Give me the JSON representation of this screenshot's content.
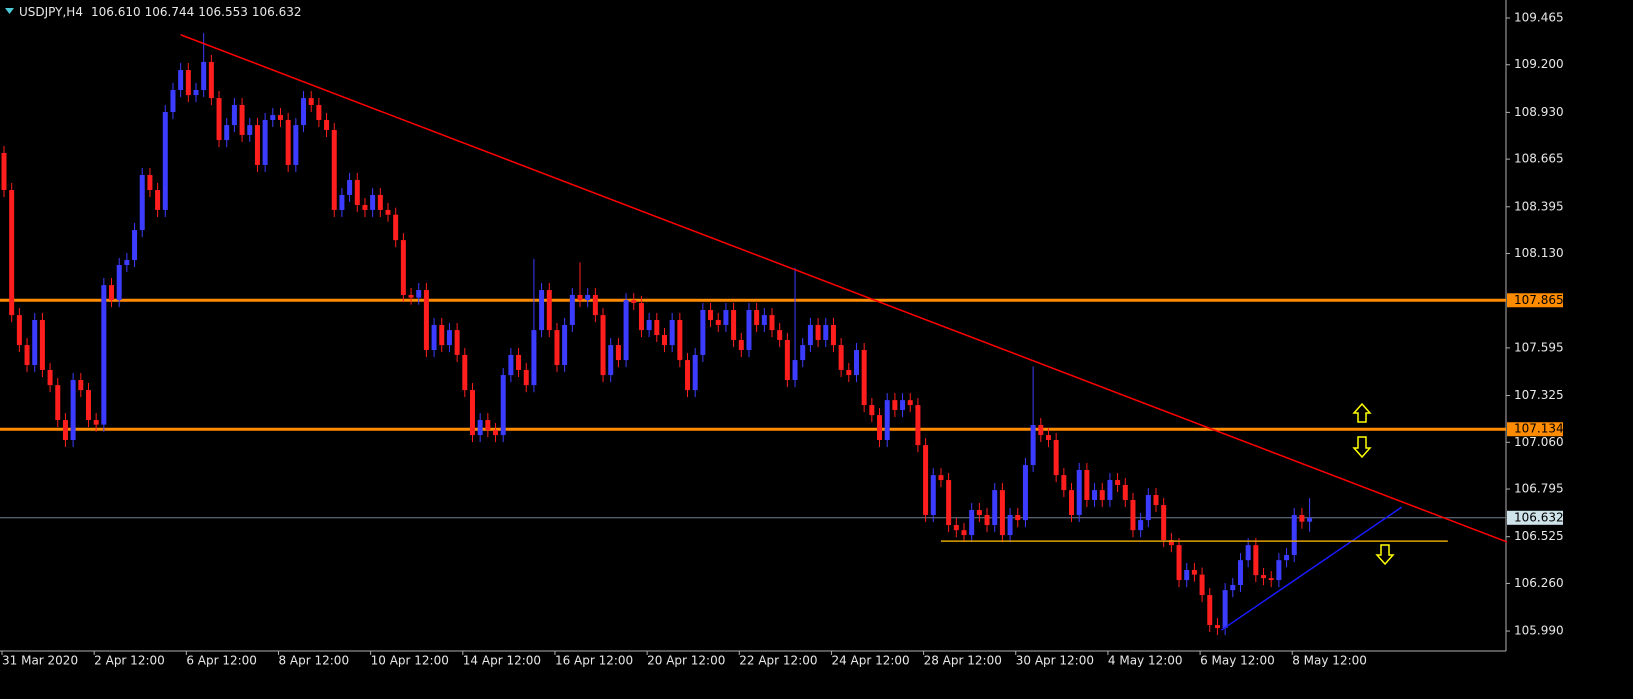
{
  "chart_data": {
    "type": "candlestick",
    "title": "USDJPY,H4",
    "ohlc_labels": [
      "106.610",
      "106.744",
      "106.553",
      "106.632"
    ],
    "categories": [
      "31 Mar 2020",
      null,
      null,
      null,
      null,
      null,
      null,
      null,
      null,
      null,
      null,
      null,
      "2 Apr 12:00",
      null,
      null,
      null,
      null,
      null,
      null,
      null,
      null,
      null,
      null,
      null,
      "6 Apr 12:00",
      null,
      null,
      null,
      null,
      null,
      null,
      null,
      null,
      null,
      null,
      null,
      "8 Apr 12:00",
      null,
      null,
      null,
      null,
      null,
      null,
      null,
      null,
      null,
      null,
      null,
      "10 Apr 12:00",
      null,
      null,
      null,
      null,
      null,
      null,
      null,
      null,
      null,
      null,
      null,
      "14 Apr 12:00",
      null,
      null,
      null,
      null,
      null,
      null,
      null,
      null,
      null,
      null,
      null,
      "16 Apr 12:00",
      null,
      null,
      null,
      null,
      null,
      null,
      null,
      null,
      null,
      null,
      null,
      "20 Apr 12:00",
      null,
      null,
      null,
      null,
      null,
      null,
      null,
      null,
      null,
      null,
      null,
      "22 Apr 12:00",
      null,
      null,
      null,
      null,
      null,
      null,
      null,
      null,
      null,
      null,
      null,
      "24 Apr 12:00",
      null,
      null,
      null,
      null,
      null,
      null,
      null,
      null,
      null,
      null,
      null,
      "28 Apr 12:00",
      null,
      null,
      null,
      null,
      null,
      null,
      null,
      null,
      null,
      null,
      null,
      "30 Apr 12:00",
      null,
      null,
      null,
      null,
      null,
      null,
      null,
      null,
      null,
      null,
      null,
      "4 May 12:00",
      null,
      null,
      null,
      null,
      null,
      null,
      null,
      null,
      null,
      null,
      null,
      "6 May 12:00",
      null,
      null,
      null,
      null,
      null,
      null,
      null,
      null,
      null,
      null,
      null,
      "8 May 12:00",
      null,
      null
    ],
    "open": [
      108.7,
      108.49,
      107.781,
      107.611,
      107.498,
      107.753,
      107.47,
      107.384,
      107.186,
      107.073,
      107.413,
      107.356,
      107.186,
      107.16,
      107.951,
      107.866,
      108.065,
      108.093,
      108.263,
      108.575,
      108.49,
      108.377,
      108.932,
      109.057,
      109.17,
      109.028,
      109.057,
      109.216,
      109.011,
      108.773,
      108.858,
      108.972,
      108.802,
      108.858,
      108.632,
      108.887,
      108.915,
      108.887,
      108.632,
      108.858,
      109.011,
      108.972,
      108.887,
      108.83,
      108.377,
      108.462,
      108.547,
      108.405,
      108.377,
      108.462,
      108.377,
      108.35,
      108.206,
      107.895,
      107.88,
      107.923,
      107.583,
      107.725,
      107.611,
      107.696,
      107.555,
      107.356,
      107.101,
      107.186,
      107.129,
      107.101,
      107.441,
      107.555,
      107.47,
      107.384,
      107.696,
      107.923,
      107.696,
      107.498,
      107.725,
      107.895,
      107.866,
      107.895,
      107.781,
      107.441,
      107.611,
      107.526,
      107.866,
      107.85,
      107.696,
      107.753,
      107.668,
      107.611,
      107.753,
      107.526,
      107.356,
      107.555,
      107.81,
      107.753,
      107.725,
      107.81,
      107.64,
      107.583,
      107.81,
      107.725,
      107.781,
      107.696,
      107.64,
      107.413,
      107.526,
      107.611,
      107.725,
      107.64,
      107.725,
      107.611,
      107.47,
      107.441,
      107.583,
      107.271,
      107.214,
      107.073,
      107.299,
      107.243,
      107.299,
      107.271,
      107.044,
      106.648,
      106.874,
      106.846,
      106.591,
      106.562,
      106.534,
      106.676,
      106.648,
      106.591,
      106.789,
      106.534,
      106.648,
      106.619,
      106.931,
      107.158,
      107.101,
      107.073,
      106.874,
      106.789,
      106.648,
      106.903,
      106.733,
      106.789,
      106.733,
      106.846,
      106.818,
      106.733,
      106.562,
      106.619,
      106.761,
      106.704,
      106.506,
      106.477,
      106.279,
      106.336,
      106.31,
      106.194,
      106.024,
      106.007,
      106.222,
      106.251,
      106.392,
      106.477,
      106.307,
      106.29,
      106.279,
      106.392,
      106.421,
      106.648,
      106.61
    ],
    "high": [
      108.74,
      108.53,
      107.821,
      107.651,
      107.793,
      107.793,
      107.51,
      107.424,
      107.226,
      107.453,
      107.453,
      107.396,
      107.226,
      107.991,
      107.991,
      108.105,
      108.133,
      108.303,
      108.615,
      108.615,
      108.53,
      108.972,
      109.097,
      109.21,
      109.21,
      109.097,
      109.38,
      109.256,
      109.051,
      108.898,
      109.012,
      109.012,
      108.898,
      108.898,
      108.927,
      108.955,
      108.955,
      108.927,
      108.898,
      109.051,
      109.051,
      109.012,
      108.927,
      108.87,
      108.502,
      108.587,
      108.587,
      108.445,
      108.502,
      108.502,
      108.417,
      108.39,
      108.246,
      107.935,
      107.963,
      107.963,
      107.765,
      107.765,
      107.736,
      107.736,
      107.595,
      107.396,
      107.226,
      107.226,
      107.169,
      107.481,
      107.595,
      107.595,
      107.51,
      108.1,
      107.963,
      107.963,
      107.736,
      107.765,
      107.935,
      108.08,
      107.935,
      107.935,
      107.821,
      107.651,
      107.651,
      107.906,
      107.906,
      107.89,
      107.793,
      107.793,
      107.708,
      107.793,
      107.793,
      107.566,
      107.595,
      107.85,
      107.85,
      107.793,
      107.85,
      107.85,
      107.68,
      107.85,
      107.85,
      107.821,
      107.821,
      107.736,
      107.68,
      108.05,
      107.651,
      107.765,
      107.765,
      107.765,
      107.765,
      107.651,
      107.51,
      107.623,
      107.623,
      107.311,
      107.254,
      107.339,
      107.339,
      107.339,
      107.339,
      107.311,
      107.084,
      106.914,
      106.914,
      106.886,
      106.631,
      106.602,
      106.716,
      106.716,
      106.688,
      106.829,
      106.829,
      106.688,
      106.688,
      106.971,
      107.49,
      107.198,
      107.141,
      107.113,
      106.914,
      106.829,
      106.943,
      106.943,
      106.829,
      106.829,
      106.886,
      106.886,
      106.858,
      106.773,
      106.659,
      106.801,
      106.801,
      106.744,
      106.546,
      106.517,
      106.376,
      106.376,
      106.35,
      106.234,
      106.064,
      106.262,
      106.291,
      106.432,
      106.517,
      106.517,
      106.347,
      106.33,
      106.432,
      106.461,
      106.688,
      106.688,
      106.744
    ],
    "low": [
      108.45,
      107.741,
      107.571,
      107.458,
      107.458,
      107.43,
      107.344,
      107.146,
      107.033,
      107.033,
      107.316,
      107.146,
      107.12,
      107.12,
      107.826,
      107.826,
      108.025,
      108.053,
      108.223,
      108.45,
      108.337,
      108.337,
      108.892,
      109.017,
      108.988,
      108.988,
      109.017,
      108.971,
      108.733,
      108.733,
      108.818,
      108.762,
      108.762,
      108.592,
      108.592,
      108.847,
      108.847,
      108.592,
      108.592,
      108.818,
      108.932,
      108.847,
      108.79,
      108.337,
      108.337,
      108.422,
      108.365,
      108.337,
      108.337,
      108.337,
      108.31,
      108.166,
      107.855,
      107.84,
      107.84,
      107.543,
      107.543,
      107.571,
      107.571,
      107.515,
      107.316,
      107.061,
      107.061,
      107.089,
      107.061,
      107.061,
      107.401,
      107.43,
      107.344,
      107.344,
      107.656,
      107.656,
      107.458,
      107.458,
      107.685,
      107.826,
      107.826,
      107.741,
      107.401,
      107.401,
      107.486,
      107.486,
      107.81,
      107.656,
      107.656,
      107.628,
      107.571,
      107.571,
      107.486,
      107.316,
      107.316,
      107.515,
      107.713,
      107.685,
      107.685,
      107.6,
      107.543,
      107.543,
      107.685,
      107.685,
      107.656,
      107.6,
      107.373,
      107.373,
      107.486,
      107.571,
      107.6,
      107.6,
      107.571,
      107.43,
      107.401,
      107.401,
      107.231,
      107.174,
      107.033,
      107.033,
      107.203,
      107.203,
      107.231,
      107.004,
      106.608,
      106.608,
      106.806,
      106.551,
      106.522,
      106.494,
      106.494,
      106.608,
      106.551,
      106.551,
      106.494,
      106.494,
      106.579,
      106.579,
      106.891,
      107.061,
      107.033,
      106.834,
      106.749,
      106.608,
      106.608,
      106.693,
      106.693,
      106.693,
      106.693,
      106.778,
      106.693,
      106.522,
      106.522,
      106.579,
      106.664,
      106.466,
      106.437,
      106.239,
      106.239,
      106.27,
      106.154,
      105.984,
      105.967,
      105.967,
      106.182,
      106.211,
      106.352,
      106.267,
      106.25,
      106.239,
      106.239,
      106.352,
      106.381,
      106.57,
      106.553
    ],
    "close": [
      108.49,
      107.781,
      107.611,
      107.498,
      107.753,
      107.47,
      107.384,
      107.186,
      107.073,
      107.413,
      107.356,
      107.186,
      107.16,
      107.951,
      107.866,
      108.065,
      108.093,
      108.263,
      108.575,
      108.49,
      108.377,
      108.932,
      109.057,
      109.17,
      109.028,
      109.057,
      109.216,
      109.011,
      108.773,
      108.858,
      108.972,
      108.802,
      108.858,
      108.632,
      108.887,
      108.915,
      108.887,
      108.632,
      108.858,
      109.011,
      108.972,
      108.887,
      108.83,
      108.377,
      108.462,
      108.547,
      108.405,
      108.377,
      108.462,
      108.377,
      108.35,
      108.206,
      107.895,
      107.88,
      107.923,
      107.583,
      107.725,
      107.611,
      107.696,
      107.555,
      107.356,
      107.101,
      107.186,
      107.129,
      107.101,
      107.441,
      107.555,
      107.47,
      107.384,
      107.696,
      107.923,
      107.696,
      107.498,
      107.725,
      107.895,
      107.866,
      107.895,
      107.781,
      107.441,
      107.611,
      107.526,
      107.866,
      107.85,
      107.696,
      107.753,
      107.668,
      107.611,
      107.753,
      107.526,
      107.356,
      107.555,
      107.81,
      107.753,
      107.725,
      107.81,
      107.64,
      107.583,
      107.81,
      107.725,
      107.781,
      107.696,
      107.64,
      107.413,
      107.526,
      107.611,
      107.725,
      107.64,
      107.725,
      107.611,
      107.47,
      107.441,
      107.583,
      107.271,
      107.214,
      107.073,
      107.299,
      107.243,
      107.299,
      107.271,
      107.044,
      106.648,
      106.874,
      106.846,
      106.591,
      106.562,
      106.534,
      106.676,
      106.648,
      106.591,
      106.789,
      106.534,
      106.648,
      106.619,
      106.931,
      107.158,
      107.101,
      107.073,
      106.874,
      106.789,
      106.648,
      106.903,
      106.733,
      106.789,
      106.733,
      106.846,
      106.818,
      106.733,
      106.562,
      106.619,
      106.761,
      106.704,
      106.506,
      106.477,
      106.279,
      106.336,
      106.31,
      106.194,
      106.024,
      106.007,
      106.222,
      106.251,
      106.392,
      106.477,
      106.307,
      106.29,
      106.279,
      106.392,
      106.421,
      106.648,
      106.61,
      106.632
    ],
    "up_color": "#3c3cff",
    "down_color": "#ff1e1e",
    "ylim": [
      105.877,
      109.55
    ],
    "yticks": [
      109.465,
      {
        "value": 109.2,
        "label": "109.200"
      },
      {
        "value": 108.93,
        "label": "108.930"
      },
      108.665,
      108.395,
      {
        "value": 108.13,
        "label": "108.130"
      },
      107.595,
      107.325,
      {
        "value": 107.06,
        "label": "107.060"
      },
      106.795,
      106.525,
      {
        "value": 106.26,
        "label": "106.260"
      },
      {
        "value": 105.99,
        "label": "105.990"
      }
    ],
    "levels": [
      {
        "value": 107.865,
        "color": "#ff8c00"
      },
      {
        "value": 107.134,
        "color": "#ff8c00"
      }
    ],
    "bid_line": {
      "value": 106.632,
      "color": "#6f8090"
    },
    "trendlines": [
      {
        "color": "#ff0000",
        "x": [
          23,
          196
        ],
        "y": [
          109.37,
          106.49
        ]
      },
      {
        "color": "#1a1aff",
        "x": [
          158.5,
          182
        ],
        "y": [
          105.995,
          106.693
        ]
      },
      {
        "color": "#e0a000",
        "x": [
          122,
          188
        ],
        "y": [
          106.5,
          106.5
        ]
      }
    ]
  }
}
